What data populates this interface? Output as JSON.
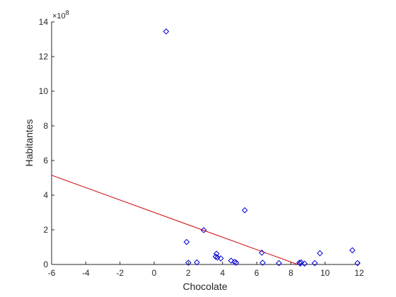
{
  "chart_data": {
    "type": "scatter",
    "xlabel": "Chocolate",
    "ylabel": "Habitantes",
    "xlim": [
      -6,
      12
    ],
    "ylim": [
      0,
      14
    ],
    "x_ticks": [
      -6,
      -4,
      -2,
      0,
      2,
      4,
      6,
      8,
      10,
      12
    ],
    "y_ticks": [
      0,
      2,
      4,
      6,
      8,
      10,
      12,
      14
    ],
    "y_exponent": {
      "base": "×10",
      "power": "8"
    },
    "grid": false,
    "marker_color": "#0000cc",
    "line_color": "#cc0000",
    "points": [
      {
        "x": 0.7,
        "y": 13.45
      },
      {
        "x": 1.9,
        "y": 1.3
      },
      {
        "x": 2.0,
        "y": 0.1
      },
      {
        "x": 2.5,
        "y": 0.12
      },
      {
        "x": 2.9,
        "y": 1.98
      },
      {
        "x": 3.6,
        "y": 0.45
      },
      {
        "x": 3.65,
        "y": 0.62
      },
      {
        "x": 3.7,
        "y": 0.4
      },
      {
        "x": 3.9,
        "y": 0.35
      },
      {
        "x": 4.5,
        "y": 0.22
      },
      {
        "x": 4.7,
        "y": 0.15
      },
      {
        "x": 4.8,
        "y": 0.1
      },
      {
        "x": 5.3,
        "y": 3.13
      },
      {
        "x": 6.3,
        "y": 0.68
      },
      {
        "x": 6.35,
        "y": 0.1
      },
      {
        "x": 7.3,
        "y": 0.08
      },
      {
        "x": 8.5,
        "y": 0.1
      },
      {
        "x": 8.55,
        "y": 0.05
      },
      {
        "x": 8.6,
        "y": 0.12
      },
      {
        "x": 8.8,
        "y": 0.05
      },
      {
        "x": 9.4,
        "y": 0.08
      },
      {
        "x": 9.7,
        "y": 0.65
      },
      {
        "x": 11.6,
        "y": 0.82
      },
      {
        "x": 11.9,
        "y": 0.08
      }
    ],
    "fit_line": {
      "x": [
        -6,
        8.4
      ],
      "y": [
        5.15,
        0
      ]
    }
  }
}
